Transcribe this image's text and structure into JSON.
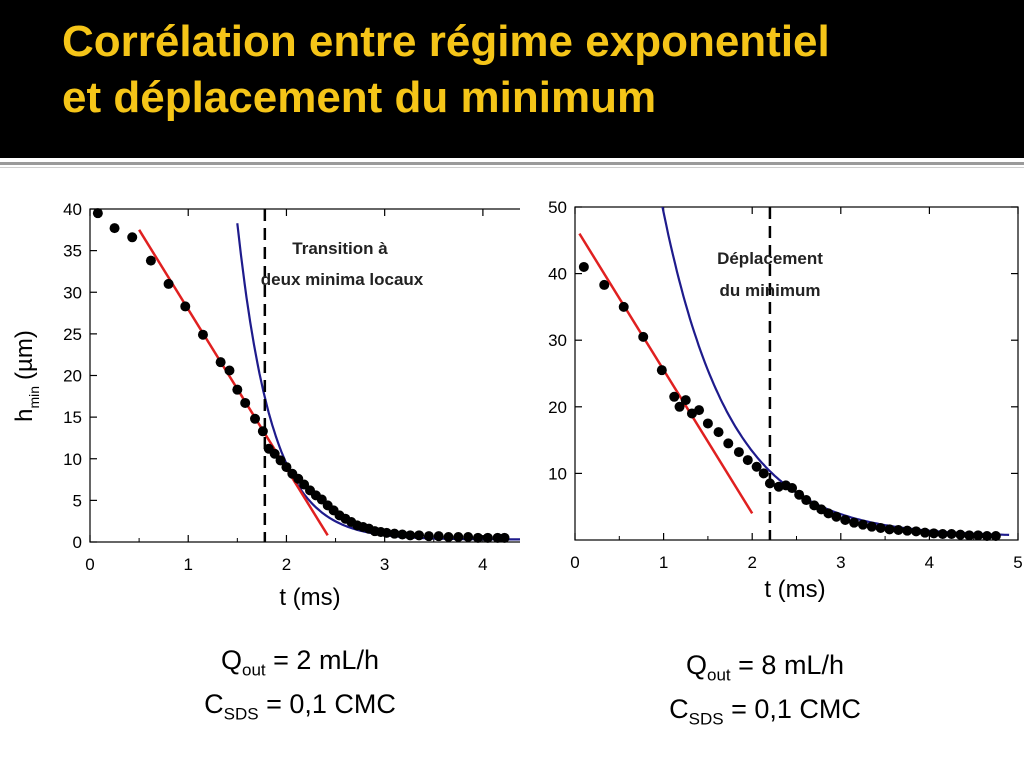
{
  "slide": {
    "title_line1": "Corrélation entre régime exponentiel",
    "title_line2": "et déplacement du minimum",
    "title_color": "#f5c518",
    "background_title": "#000000"
  },
  "captions": [
    {
      "q_main": "Q",
      "q_sub": "out",
      "q_rest": " = 2 mL/h",
      "c_main": "C",
      "c_sub": "SDS",
      "c_rest": " = 0,1 CMC"
    },
    {
      "q_main": "Q",
      "q_sub": "out",
      "q_rest": " = 8 mL/h",
      "c_main": "C",
      "c_sub": "SDS",
      "c_rest": " = 0,1 CMC"
    }
  ],
  "chart_data": [
    {
      "type": "scatter",
      "xlabel": "t (ms)",
      "ylabel_main": "h",
      "ylabel_sub": "min",
      "ylabel_unit": "(µm)",
      "xlim": [
        0,
        4.5
      ],
      "ylim": [
        0,
        40
      ],
      "xticks": [
        0,
        1,
        2,
        3,
        4
      ],
      "yticks": [
        0,
        5,
        10,
        15,
        20,
        25,
        30,
        35,
        40
      ],
      "grid": false,
      "annotation_line1": "Transition à",
      "annotation_line2": "deux minima locaux",
      "vline_x": 1.78,
      "colors": {
        "points": "#000000",
        "linear_fit": "#e02020",
        "exp_fit": "#1e1b8c",
        "vline": "#000000"
      },
      "points": {
        "x": [
          0.08,
          0.25,
          0.43,
          0.62,
          0.8,
          0.97,
          1.15,
          1.33,
          1.42,
          1.5,
          1.58,
          1.68,
          1.76,
          1.82,
          1.88,
          1.94,
          2.0,
          2.06,
          2.12,
          2.18,
          2.24,
          2.3,
          2.36,
          2.42,
          2.48,
          2.54,
          2.6,
          2.66,
          2.72,
          2.78,
          2.84,
          2.9,
          2.96,
          3.02,
          3.1,
          3.18,
          3.26,
          3.35,
          3.45,
          3.55,
          3.65,
          3.75,
          3.85,
          3.95,
          4.05,
          4.15,
          4.22
        ],
        "y": [
          39.5,
          37.7,
          36.6,
          33.8,
          31.0,
          28.3,
          24.9,
          21.6,
          20.6,
          18.3,
          16.7,
          14.8,
          13.3,
          11.2,
          10.6,
          9.8,
          9.0,
          8.2,
          7.6,
          6.9,
          6.2,
          5.6,
          5.1,
          4.4,
          3.8,
          3.2,
          2.8,
          2.4,
          2.0,
          1.8,
          1.6,
          1.3,
          1.2,
          1.1,
          1.0,
          0.9,
          0.8,
          0.8,
          0.7,
          0.7,
          0.6,
          0.6,
          0.6,
          0.5,
          0.5,
          0.5,
          0.5
        ]
      },
      "linear_fit": {
        "x": [
          0.5,
          2.42
        ],
        "y": [
          37.5,
          0.8
        ]
      },
      "exp_fit": {
        "x0": 1.5,
        "x1": 4.5,
        "a": 38.0,
        "t0": 1.5,
        "tau": 0.35,
        "offset": 0.3
      }
    },
    {
      "type": "scatter",
      "xlabel": "t (ms)",
      "ylabel_main": "",
      "ylabel_sub": "",
      "ylabel_unit": "",
      "xlim": [
        0,
        5
      ],
      "ylim": [
        0,
        50
      ],
      "xticks": [
        0,
        1,
        2,
        3,
        4,
        5
      ],
      "yticks": [
        10,
        20,
        30,
        40,
        50
      ],
      "grid": false,
      "annotation_line1": "Déplacement",
      "annotation_line2": "du minimum",
      "vline_x": 2.2,
      "colors": {
        "points": "#000000",
        "linear_fit": "#e02020",
        "exp_fit": "#1e1b8c",
        "vline": "#000000"
      },
      "points": {
        "x": [
          0.1,
          0.33,
          0.55,
          0.77,
          0.98,
          1.12,
          1.18,
          1.25,
          1.32,
          1.4,
          1.5,
          1.62,
          1.73,
          1.85,
          1.95,
          2.05,
          2.13,
          2.2,
          2.3,
          2.38,
          2.45,
          2.53,
          2.61,
          2.7,
          2.78,
          2.86,
          2.95,
          3.05,
          3.15,
          3.25,
          3.35,
          3.45,
          3.55,
          3.65,
          3.75,
          3.85,
          3.95,
          4.05,
          4.15,
          4.25,
          4.35,
          4.45,
          4.55,
          4.65,
          4.75
        ],
        "y": [
          41.0,
          38.3,
          35.0,
          30.5,
          25.5,
          21.5,
          20.0,
          21.0,
          19.0,
          19.5,
          17.5,
          16.2,
          14.5,
          13.2,
          12.0,
          11.0,
          10.0,
          8.5,
          8.0,
          8.2,
          7.8,
          6.8,
          6.0,
          5.2,
          4.6,
          4.0,
          3.5,
          3.0,
          2.6,
          2.3,
          2.0,
          1.8,
          1.6,
          1.5,
          1.4,
          1.3,
          1.1,
          1.0,
          0.9,
          0.9,
          0.8,
          0.7,
          0.7,
          0.6,
          0.6
        ]
      },
      "linear_fit": {
        "x": [
          0.05,
          2.0
        ],
        "y": [
          46.0,
          4.0
        ]
      },
      "exp_fit": {
        "x0": 0.98,
        "x1": 4.9,
        "a": 50.0,
        "t0": 0.98,
        "tau": 0.75,
        "offset": 0.5
      }
    }
  ]
}
